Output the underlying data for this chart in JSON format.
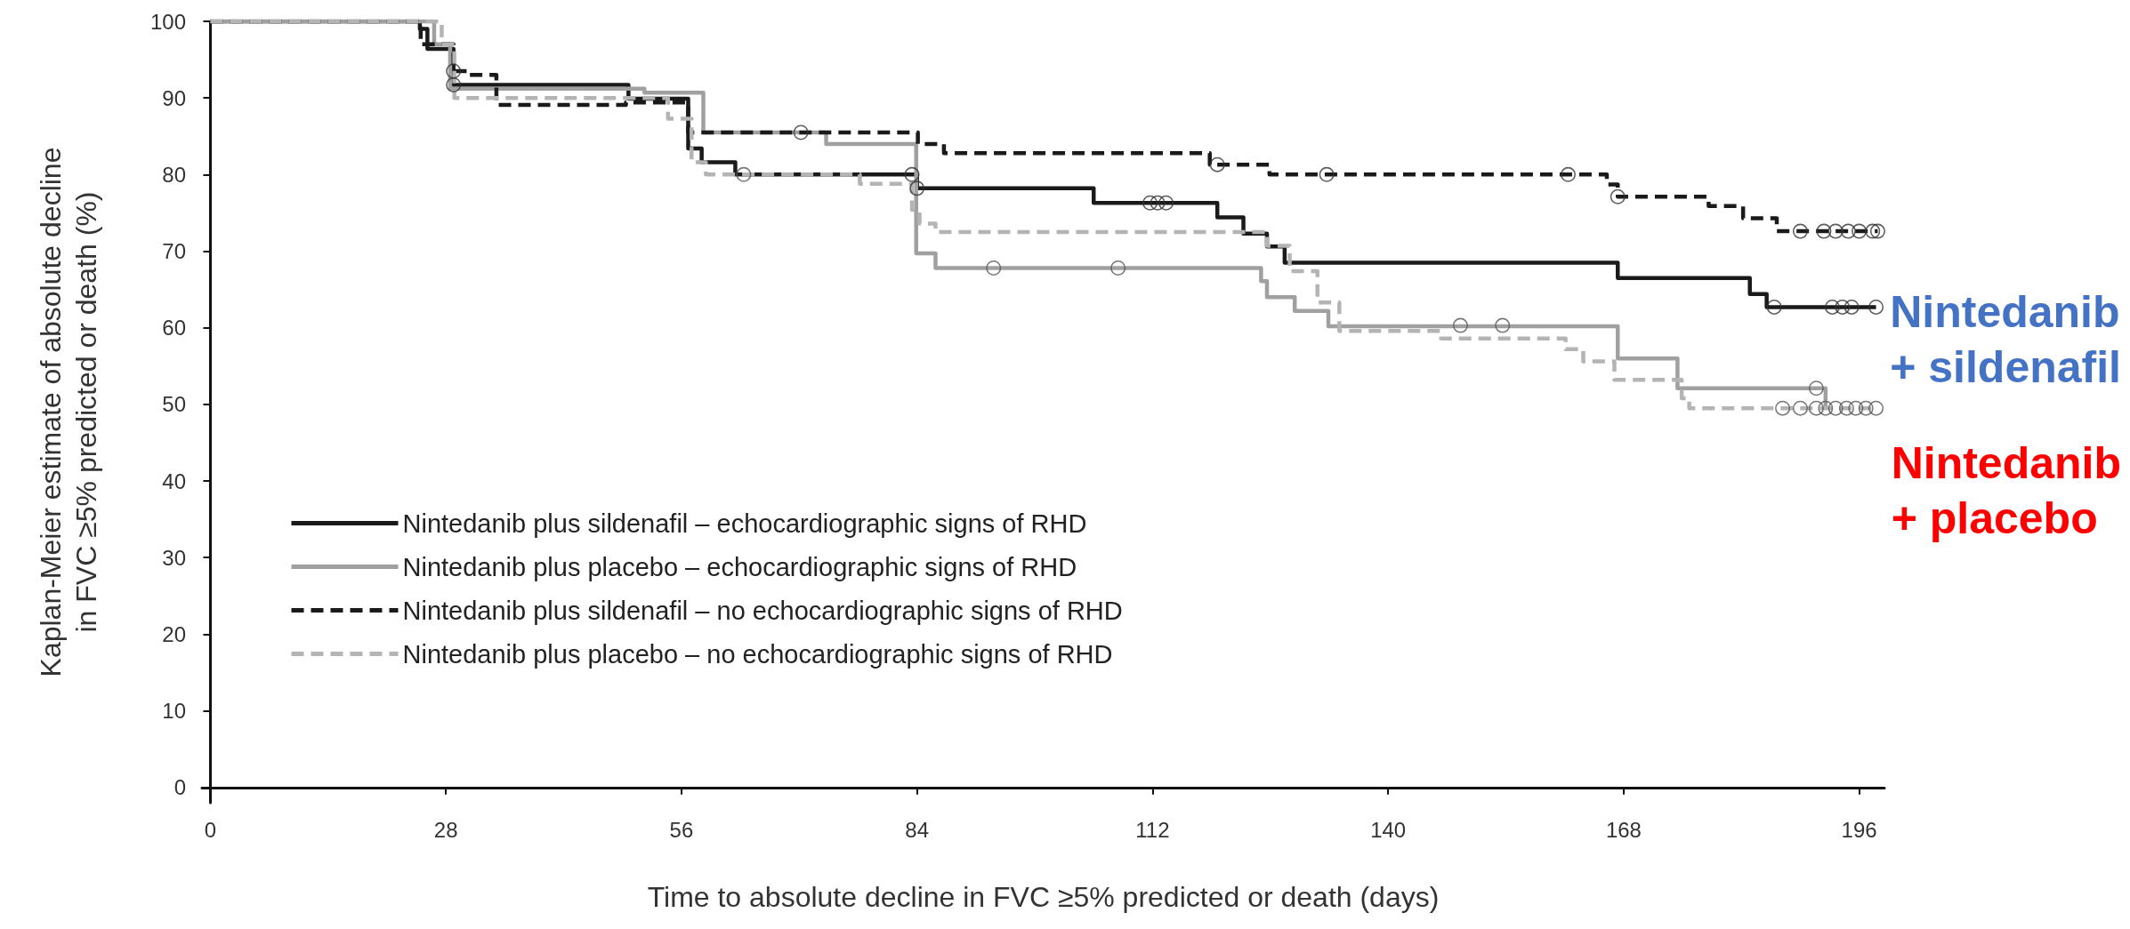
{
  "chart_data": {
    "type": "step",
    "xlabel": "Time to absolute decline in FVC ≥5% predicted or death (days)",
    "ylabel": "Kaplan-Meier estimate of absolute decline\nin FVC ≥5% predicted or death (%)",
    "xlim": [
      -1,
      199
    ],
    "xticks": [
      0,
      28,
      56,
      84,
      112,
      140,
      168,
      196
    ],
    "ylim": [
      -2,
      100
    ],
    "yticks": [
      0,
      10,
      20,
      30,
      40,
      50,
      60,
      70,
      80,
      90,
      100
    ],
    "grid": false,
    "legend": "bottom left",
    "annotations": [
      "Nintedanib\n+ sildenafil",
      "Nintedanib\n+ placebo"
    ],
    "series": [
      {
        "name": "Nintedanib plus sildenafil – echocardiographic signs of RHD",
        "color": "#1a1a1a",
        "line_style": "solid",
        "marker": "none",
        "x": [
          0,
          24.9,
          25.8,
          28.9,
          49.7,
          56.8,
          58.4,
          62.4,
          84,
          105,
          119.7,
          122.8,
          125.6,
          127.7,
          167.3,
          183,
          185,
          198
        ],
        "values": [
          100,
          99,
          96.4,
          91.7,
          89.9,
          83.4,
          81.6,
          80,
          78.2,
          76.3,
          74.4,
          72.3,
          70.6,
          68.5,
          66.5,
          64.4,
          62.7,
          62.7
        ]
      },
      {
        "name": "Nintedanib plus placebo – echocardiographic signs of RHD",
        "color": "#a0a0a0",
        "line_style": "solid",
        "marker": "none",
        "x": [
          0,
          26.6,
          28.5,
          51.6,
          58.6,
          73.2,
          83.9,
          86.2,
          124.9,
          125.6,
          128.9,
          132.9,
          167.3,
          174.4,
          192
        ],
        "values": [
          100,
          97,
          91.2,
          90.7,
          85.5,
          84,
          69.7,
          67.8,
          66.1,
          64,
          62.2,
          60.2,
          56,
          52.1,
          49.7
        ]
      },
      {
        "name": "Nintedanib plus sildenafil – no echocardiographic signs of RHD",
        "color": "#1a1a1a",
        "line_style": "dashed",
        "marker": "none",
        "x": [
          0,
          25,
          28.9,
          30.8,
          34,
          49.4,
          56.8,
          84.1,
          87.2,
          118.8,
          125.9,
          166,
          167.3,
          178.1,
          182.2,
          186.2,
          198.2
        ],
        "values": [
          100,
          97,
          93.5,
          93,
          89.1,
          89.4,
          85.5,
          84,
          82.8,
          81.3,
          80,
          78.7,
          77.1,
          75.9,
          74.3,
          72.6,
          72.6
        ]
      },
      {
        "name": "Nintedanib plus placebo – no echocardiographic signs of RHD",
        "color": "#b4b4b4",
        "line_style": "dashed",
        "marker": "none",
        "x": [
          0,
          27.5,
          29,
          54.4,
          57.2,
          58.9,
          77.2,
          83.4,
          84.3,
          86.2,
          125.6,
          128.3,
          131.6,
          134.2,
          146.3,
          161.1,
          163.2,
          166.9,
          174.9,
          175.8,
          198
        ],
        "values": [
          100,
          97,
          90,
          87.3,
          81.6,
          80,
          78.8,
          75.4,
          73.6,
          72.5,
          70.7,
          67.4,
          63.3,
          59.6,
          58.6,
          57.2,
          55.6,
          53.2,
          50.8,
          49.5,
          49.5
        ]
      },
      {
        "type": "scatter",
        "color": "#333333",
        "marker": "circle",
        "x": [
          28.9,
          83.4,
          84,
          111.7,
          112.6,
          113.6,
          185.9,
          192.8,
          194,
          195.1,
          198
        ],
        "values": [
          91.7,
          80,
          78.2,
          76.3,
          76.3,
          76.3,
          62.7,
          62.7,
          62.7,
          62.7,
          62.7
        ]
      },
      {
        "type": "scatter",
        "color": "#555555",
        "marker": "circle",
        "x": [
          63.4,
          93.1,
          107.9,
          148.6,
          153.6,
          190.9
        ],
        "values": [
          80,
          67.8,
          67.8,
          60.3,
          60.3,
          52.1
        ]
      },
      {
        "type": "scatter",
        "color": "#333333",
        "marker": "circle",
        "x": [
          28.9,
          70.2,
          119.7,
          132.7,
          161.4,
          167.3,
          189,
          191.8,
          193.2,
          194.7,
          196,
          197.6,
          198.2
        ],
        "values": [
          93.5,
          85.5,
          81.3,
          80,
          80,
          77.1,
          72.6,
          72.6,
          72.6,
          72.6,
          72.6,
          72.6,
          72.6
        ]
      },
      {
        "type": "scatter",
        "color": "#555555",
        "marker": "circle",
        "x": [
          186.9,
          189,
          190.9,
          192,
          193.2,
          194.5,
          195.6,
          196.8,
          198
        ],
        "values": [
          49.5,
          49.5,
          49.5,
          49.5,
          49.5,
          49.5,
          49.5,
          49.5,
          49.5
        ]
      }
    ]
  }
}
